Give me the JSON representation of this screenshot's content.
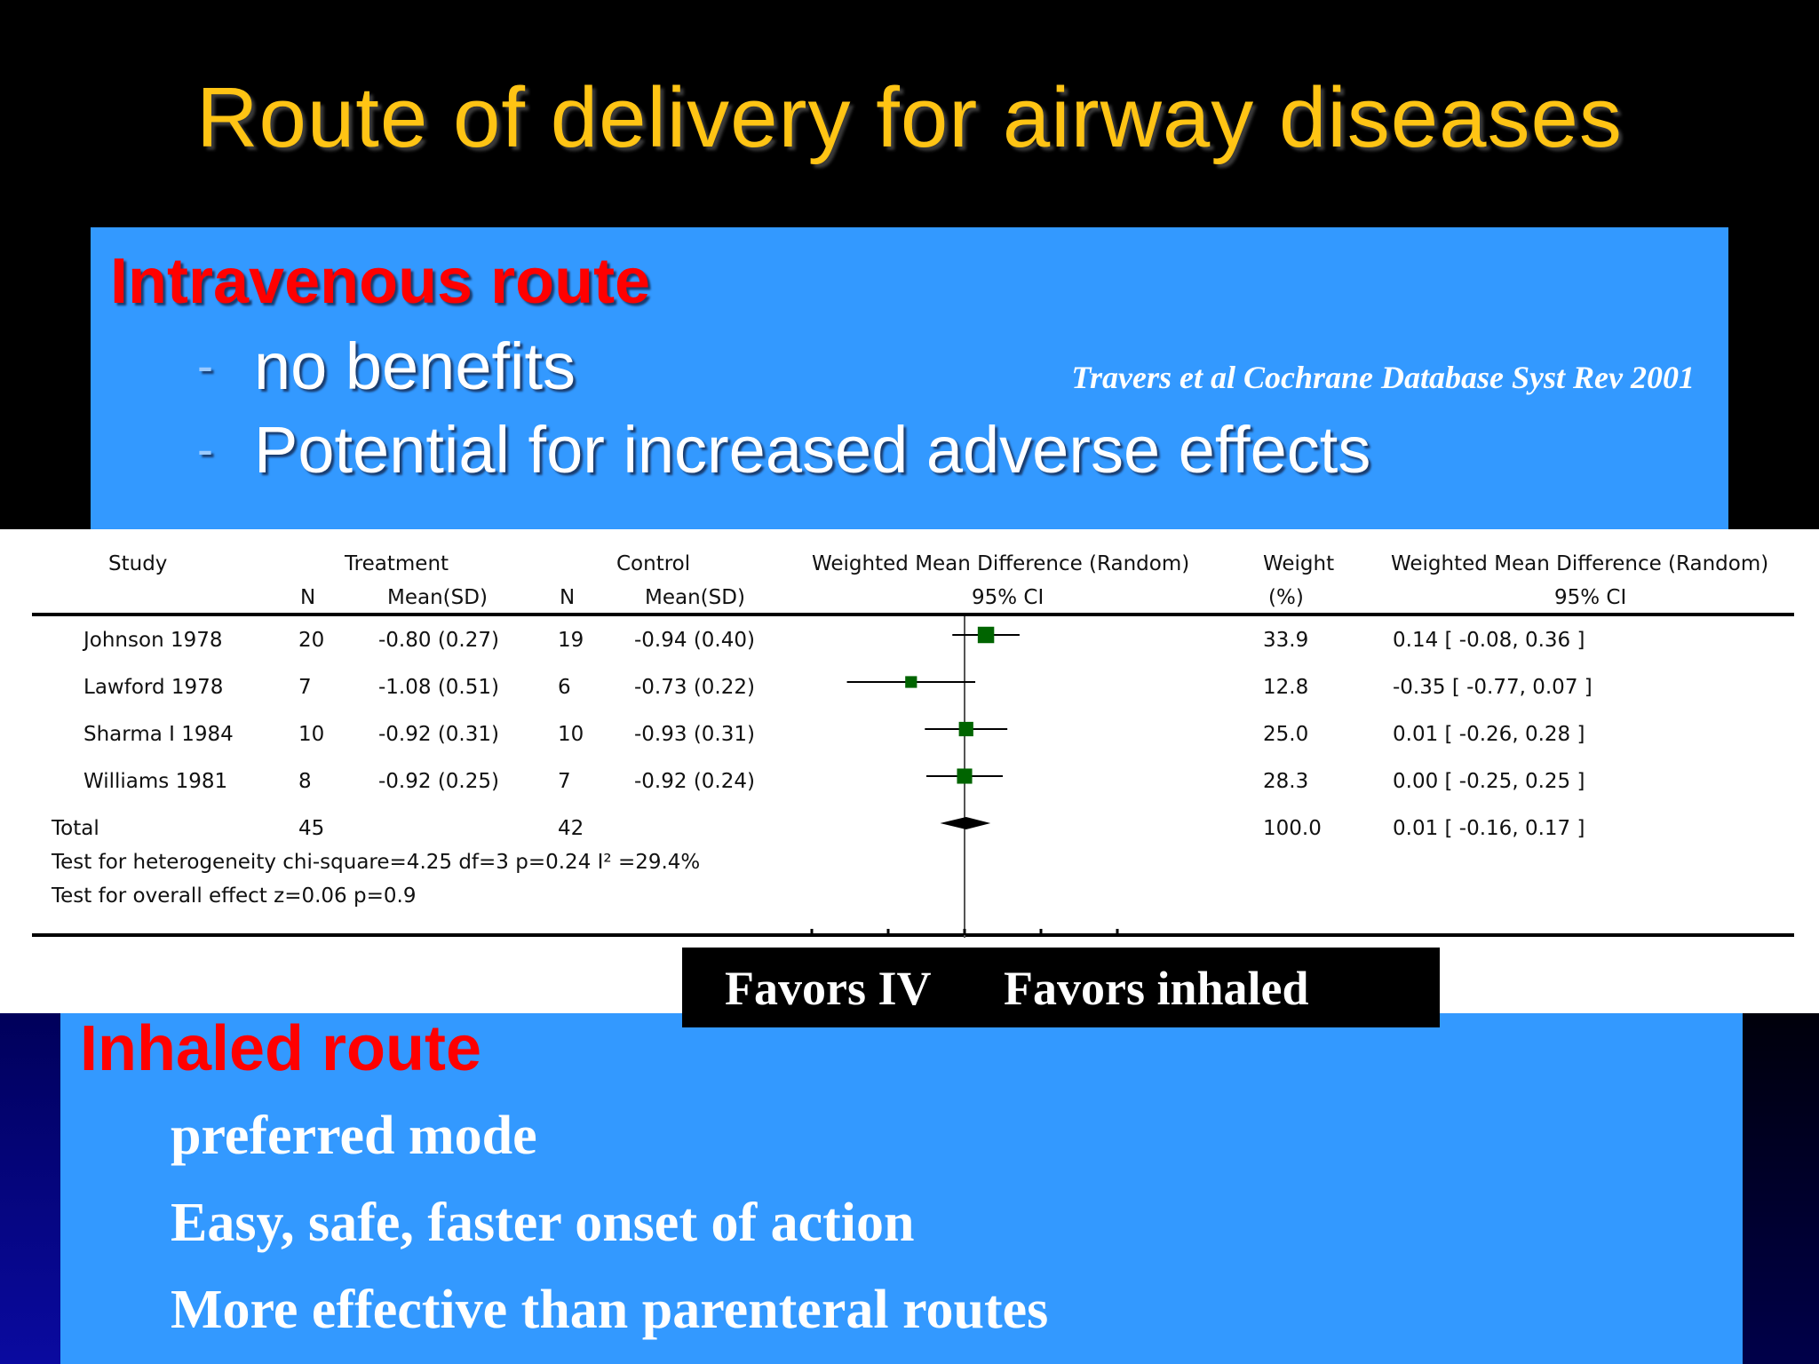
{
  "slide": {
    "title": "Route of delivery for airway diseases"
  },
  "intravenous": {
    "heading": "Intravenous route",
    "bullet_marker": "-",
    "bullets": [
      "no benefits",
      "Potential for increased adverse effects"
    ],
    "citation": "Travers et al Cochrane Database Syst Rev 2001"
  },
  "forest_plot": {
    "headers": {
      "study": "Study",
      "treatment": "Treatment",
      "control": "Control",
      "wmd": "Weighted Mean Difference (Random)",
      "weight": "Weight",
      "wmd2": "Weighted Mean Difference (Random)",
      "n": "N",
      "mean_sd": "Mean(SD)",
      "ci": "95% CI",
      "pct": "(%)"
    },
    "rows": [
      {
        "study": "Johnson 1978",
        "tn": "20",
        "tmean": "-0.80 (0.27)",
        "cn": "19",
        "cmean": "-0.94 (0.40)",
        "weight": "33.9",
        "wmd": "0.14 [ -0.08, 0.36 ]",
        "est": 0.14,
        "lo": -0.08,
        "hi": 0.36
      },
      {
        "study": "Lawford 1978",
        "tn": "7",
        "tmean": "-1.08 (0.51)",
        "cn": "6",
        "cmean": "-0.73 (0.22)",
        "weight": "12.8",
        "wmd": "-0.35 [ -0.77, 0.07 ]",
        "est": -0.35,
        "lo": -0.77,
        "hi": 0.07
      },
      {
        "study": "Sharma I 1984",
        "tn": "10",
        "tmean": "-0.92 (0.31)",
        "cn": "10",
        "cmean": "-0.93 (0.31)",
        "weight": "25.0",
        "wmd": "0.01 [ -0.26, 0.28 ]",
        "est": 0.01,
        "lo": -0.26,
        "hi": 0.28
      },
      {
        "study": "Williams 1981",
        "tn": "8",
        "tmean": "-0.92 (0.25)",
        "cn": "7",
        "cmean": "-0.92 (0.24)",
        "weight": "28.3",
        "wmd": "0.00 [ -0.25, 0.25 ]",
        "est": 0.0,
        "lo": -0.25,
        "hi": 0.25
      }
    ],
    "total": {
      "label": "Total",
      "tn": "45",
      "cn": "42",
      "weight": "100.0",
      "wmd": "0.01 [ -0.16, 0.17 ]",
      "est": 0.01,
      "lo": -0.16,
      "hi": 0.17
    },
    "heterogeneity": "Test for heterogeneity chi-square=4.25 df=3 p=0.24 I² =29.4%",
    "overall_effect": "Test for overall effect z=0.06    p=0.9",
    "xlim": [
      -1,
      1
    ],
    "marker_color": "#006400",
    "favors_left": "Favors IV",
    "favors_right": "Favors inhaled"
  },
  "inhaled": {
    "heading": "Inhaled route",
    "items": [
      "preferred mode",
      "Easy, safe, faster onset of action",
      "More effective than parenteral routes"
    ]
  },
  "colors": {
    "title": "#ffc414",
    "panel": "#3399ff",
    "heading": "#ff0000"
  }
}
